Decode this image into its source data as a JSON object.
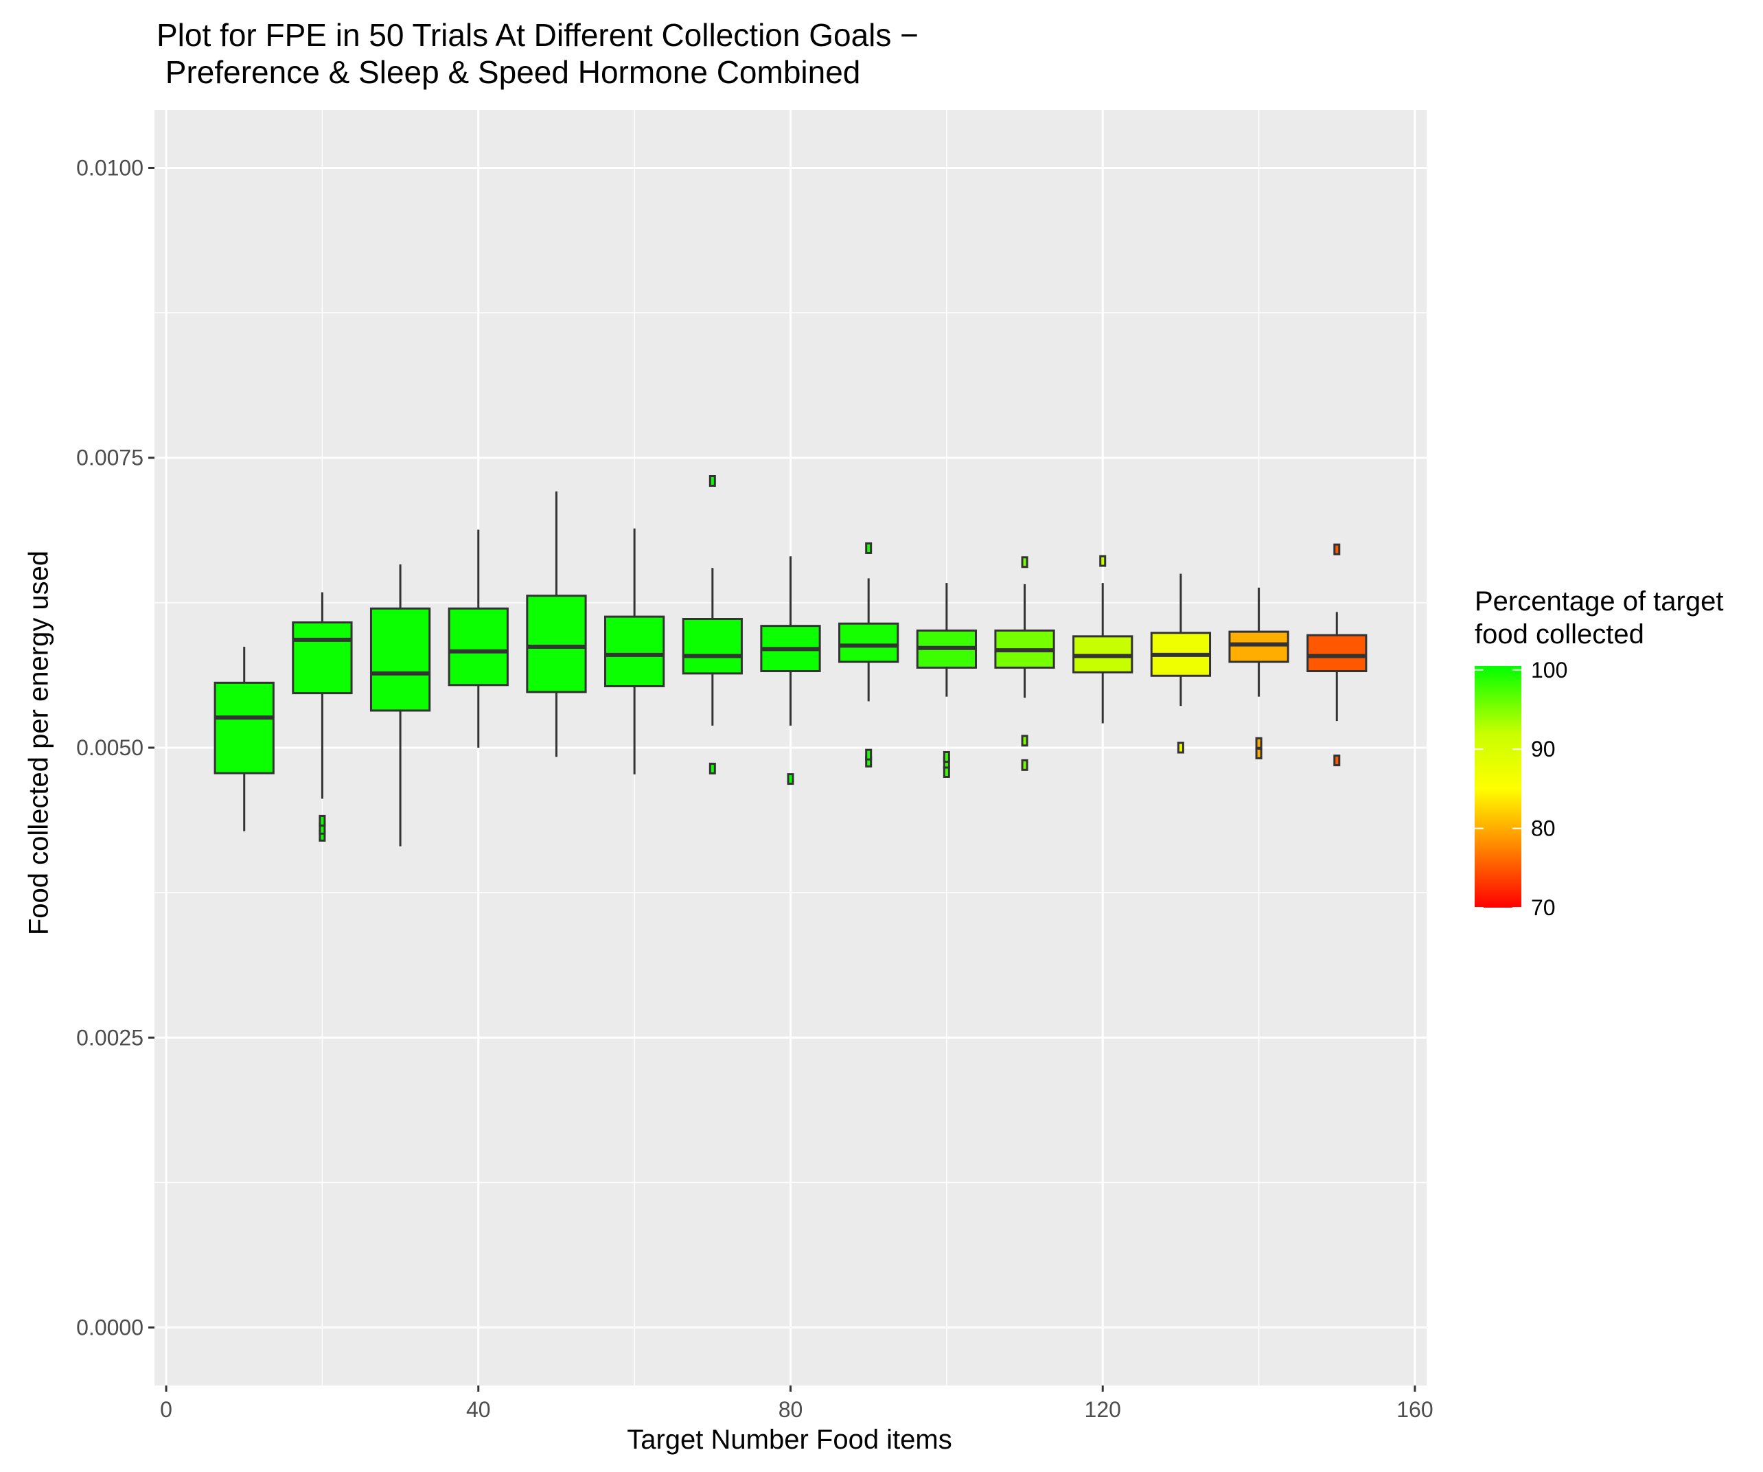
{
  "chart_data": {
    "type": "boxplot",
    "title_line1": "Plot for FPE in 50 Trials At Different Collection Goals −",
    "title_line2": " Preference & Sleep & Speed Hormone Combined",
    "xlabel": "Target Number Food items",
    "ylabel": "Food collected per energy used",
    "xlim": [
      -1.5,
      161.5
    ],
    "ylim": [
      -0.0005,
      0.0105
    ],
    "x_ticks": [
      0,
      40,
      80,
      120,
      160
    ],
    "x_tick_labels": [
      "0",
      "40",
      "80",
      "120",
      "160"
    ],
    "x_minor": [
      20,
      60,
      100,
      140
    ],
    "y_ticks": [
      0.0,
      0.0025,
      0.005,
      0.0075,
      0.01
    ],
    "y_tick_labels": [
      "0.0000",
      "0.0025",
      "0.0050",
      "0.0075",
      "0.0100"
    ],
    "y_minor": [
      0.00125,
      0.00375,
      0.00625,
      0.00875
    ],
    "legend": {
      "title_line1": "Percentage of target",
      "title_line2": "food collected",
      "range": [
        70,
        100.5
      ],
      "ticks": [
        70,
        80,
        90,
        100
      ],
      "tick_labels": [
        "70",
        "80",
        "90",
        "100"
      ],
      "color_stops": [
        {
          "value": 70,
          "color": "#ff0000"
        },
        {
          "value": 78,
          "color": "#ff8c00"
        },
        {
          "value": 85,
          "color": "#ffff00"
        },
        {
          "value": 92,
          "color": "#c8ff00"
        },
        {
          "value": 100.5,
          "color": "#00ff00"
        }
      ]
    },
    "boxes": [
      {
        "x": 10,
        "pct": 100,
        "lower": 0.00428,
        "q1": 0.00478,
        "median": 0.00526,
        "q3": 0.00556,
        "upper": 0.00587,
        "outliers": []
      },
      {
        "x": 20,
        "pct": 100,
        "lower": 0.00456,
        "q1": 0.00547,
        "median": 0.00593,
        "q3": 0.00608,
        "upper": 0.00634,
        "outliers": [
          0.00424,
          0.0043,
          0.00437
        ]
      },
      {
        "x": 30,
        "pct": 100,
        "lower": 0.00415,
        "q1": 0.00532,
        "median": 0.00564,
        "q3": 0.0062,
        "upper": 0.00658,
        "outliers": []
      },
      {
        "x": 40,
        "pct": 100,
        "lower": 0.005,
        "q1": 0.00554,
        "median": 0.00583,
        "q3": 0.0062,
        "upper": 0.00688,
        "outliers": []
      },
      {
        "x": 50,
        "pct": 100,
        "lower": 0.00492,
        "q1": 0.00548,
        "median": 0.00587,
        "q3": 0.00631,
        "upper": 0.00721,
        "outliers": []
      },
      {
        "x": 60,
        "pct": 100,
        "lower": 0.00477,
        "q1": 0.00553,
        "median": 0.0058,
        "q3": 0.00613,
        "upper": 0.00689,
        "outliers": []
      },
      {
        "x": 70,
        "pct": 100,
        "lower": 0.00519,
        "q1": 0.00564,
        "median": 0.00579,
        "q3": 0.00611,
        "upper": 0.00655,
        "outliers": [
          0.00482,
          0.0073
        ]
      },
      {
        "x": 80,
        "pct": 100,
        "lower": 0.00519,
        "q1": 0.00566,
        "median": 0.00585,
        "q3": 0.00605,
        "upper": 0.00665,
        "outliers": [
          0.00473
        ]
      },
      {
        "x": 90,
        "pct": 99.6,
        "lower": 0.0054,
        "q1": 0.00574,
        "median": 0.00588,
        "q3": 0.00607,
        "upper": 0.00646,
        "outliers": [
          0.00488,
          0.00494,
          0.00672
        ]
      },
      {
        "x": 100,
        "pct": 98,
        "lower": 0.00544,
        "q1": 0.00569,
        "median": 0.00586,
        "q3": 0.00601,
        "upper": 0.00642,
        "outliers": [
          0.00479,
          0.00487,
          0.00492
        ]
      },
      {
        "x": 110,
        "pct": 95.5,
        "lower": 0.00543,
        "q1": 0.00569,
        "median": 0.00584,
        "q3": 0.00601,
        "upper": 0.00641,
        "outliers": [
          0.00485,
          0.00506,
          0.0066
        ]
      },
      {
        "x": 120,
        "pct": 92,
        "lower": 0.00521,
        "q1": 0.00565,
        "median": 0.00579,
        "q3": 0.00596,
        "upper": 0.00642,
        "outliers": [
          0.00661
        ]
      },
      {
        "x": 130,
        "pct": 87,
        "lower": 0.00536,
        "q1": 0.00562,
        "median": 0.0058,
        "q3": 0.00599,
        "upper": 0.0065,
        "outliers": [
          0.005
        ]
      },
      {
        "x": 140,
        "pct": 80,
        "lower": 0.00544,
        "q1": 0.00574,
        "median": 0.00589,
        "q3": 0.006,
        "upper": 0.00638,
        "outliers": [
          0.00495,
          0.00504
        ]
      },
      {
        "x": 150,
        "pct": 75,
        "lower": 0.00523,
        "q1": 0.00566,
        "median": 0.00579,
        "q3": 0.00597,
        "upper": 0.00617,
        "outliers": [
          0.00489,
          0.00671
        ]
      }
    ]
  }
}
